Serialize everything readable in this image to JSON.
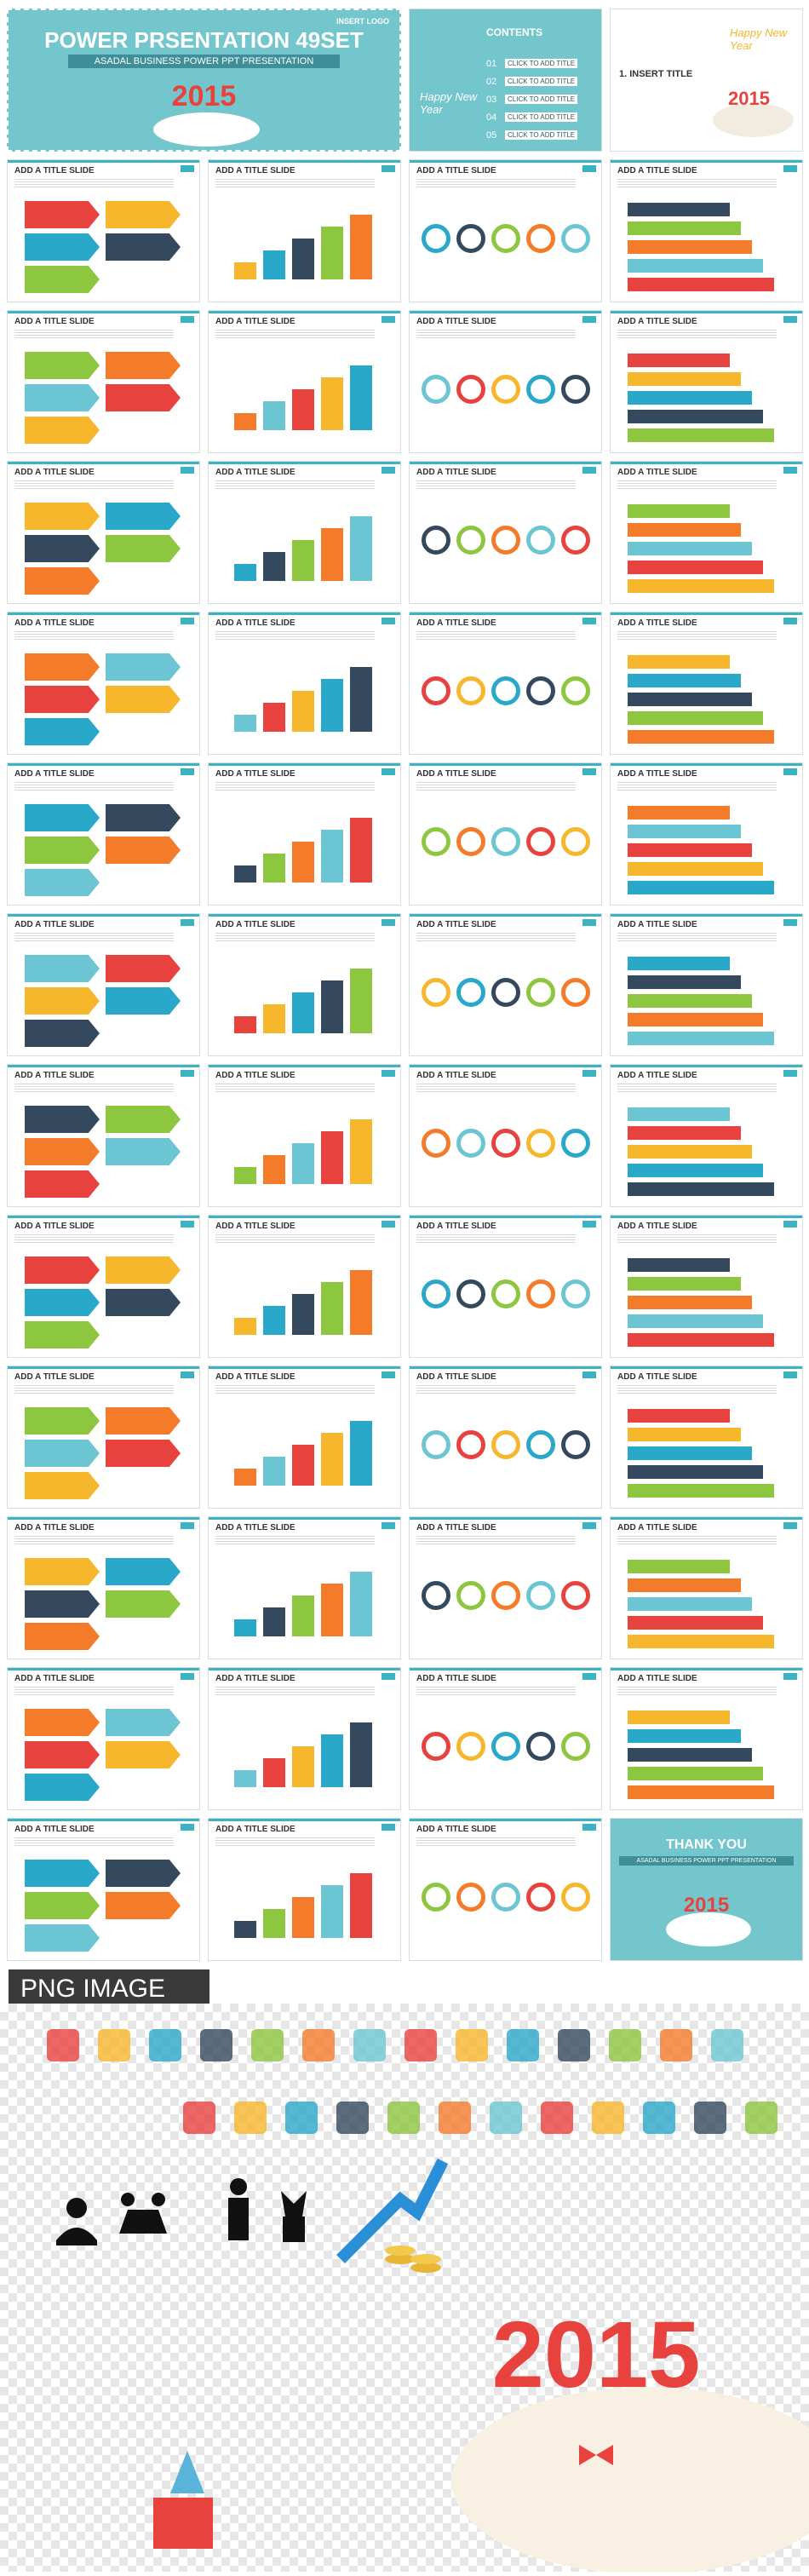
{
  "cover": {
    "logo": "INSERT LOGO",
    "title": "POWER PRSENTATION 49SET",
    "subtitle": "ASADAL BUSINESS POWER PPT PRESENTATION",
    "year": "2015"
  },
  "contents": {
    "title": "CONTENTS",
    "greeting": "Happy New Year",
    "items": [
      {
        "number": "01",
        "label": "CLICK TO ADD TITLE"
      },
      {
        "number": "02",
        "label": "CLICK TO ADD TITLE"
      },
      {
        "number": "03",
        "label": "CLICK TO ADD TITLE"
      },
      {
        "number": "04",
        "label": "CLICK TO ADD TITLE"
      },
      {
        "number": "05",
        "label": "CLICK TO ADD TITLE"
      }
    ]
  },
  "insert_slide": {
    "title": "1. INSERT TITLE"
  },
  "slides": [
    "ADD A TITLE SLIDE",
    "ADD A TITLE SLIDE",
    "ADD A TITLE SLIDE",
    "ADD A TITLE SLIDE",
    "ADD A TITLE SLIDE",
    "ADD A TITLE SLIDE",
    "ADD A TITLE SLIDE",
    "ADD A TITLE SLIDE",
    "ADD A TITLE SLIDE",
    "ADD A TITLE SLIDE",
    "ADD A TITLE SLIDE",
    "ADD A TITLE SLIDE",
    "ADD A TITLE SLIDE",
    "ADD A TITLE SLIDE",
    "ADD A TITLE SLIDE",
    "ADD A TITLE SLIDE",
    "ADD A TITLE SLIDE",
    "ADD A TITLE SLIDE",
    "ADD A TITLE SLIDE",
    "ADD A TITLE SLIDE",
    "ADD A TITLE SLIDE",
    "ADD A TITLE SLIDE",
    "ADD A TITLE SLIDE",
    "ADD A TITLE SLIDE",
    "ADD A TITLE SLIDE",
    "ADD A TITLE SLIDE",
    "ADD A TITLE SLIDE",
    "ADD A TITLE SLIDE",
    "ADD A TITLE SLIDE",
    "ADD A TITLE SLIDE",
    "ADD A TITLE SLIDE",
    "ADD A TITLE SLIDE",
    "ADD A TITLE SLIDE",
    "ADD A TITLE SLIDE",
    "ADD A TITLE SLIDE",
    "ADD A TITLE SLIDE",
    "ADD A TITLE SLIDE",
    "ADD A TITLE SLIDE",
    "ADD A TITLE SLIDE",
    "ADD A TITLE SLIDE",
    "ADD A TITLE SLIDE",
    "ADD A TITLE SLIDE",
    "ADD A TITLE SLIDE",
    "ADD A TITLE SLIDE",
    "ADD A TITLE SLIDE",
    "ADD A TITLE SLIDE",
    "ADD A TITLE SLIDE"
  ],
  "thank_you": {
    "title": "THANK YOU",
    "subtitle": "ASADAL BUSINESS POWER PPT PRESENTATION"
  },
  "png_section": {
    "title": "PNG IMAGE"
  }
}
